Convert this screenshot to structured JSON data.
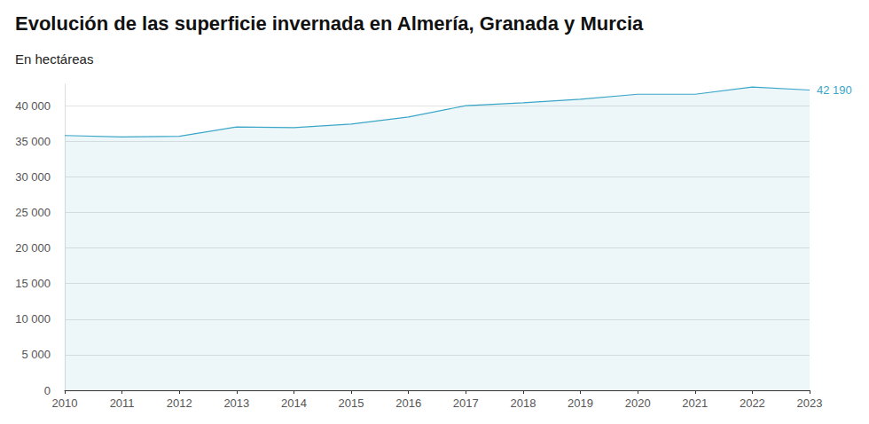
{
  "chart_data": {
    "type": "line",
    "title": "Evolución de las superficie invernada en Almería, Granada y Murcia",
    "subtitle": "En hectáreas",
    "categories": [
      "2010",
      "2011",
      "2012",
      "2013",
      "2014",
      "2015",
      "2016",
      "2017",
      "2018",
      "2019",
      "2020",
      "2021",
      "2022",
      "2023"
    ],
    "values": [
      35800,
      35600,
      35700,
      37000,
      36900,
      37400,
      38400,
      40000,
      40400,
      40900,
      41600,
      41600,
      42600,
      42190
    ],
    "value_labels": [
      null,
      null,
      null,
      null,
      null,
      null,
      null,
      null,
      null,
      null,
      null,
      null,
      null,
      "42 190"
    ],
    "data_labels": true,
    "color": "#3aa6c7",
    "ylim": [
      0,
      43000
    ],
    "yticks": [
      0,
      {
        "value": 5000,
        "label": "5 000"
      },
      {
        "value": 10000,
        "label": "10 000"
      },
      {
        "value": 15000,
        "label": "15 000"
      },
      {
        "value": 20000,
        "label": "20 000"
      },
      {
        "value": 25000,
        "label": "25 000"
      },
      {
        "value": 30000,
        "label": "30 000"
      },
      {
        "value": 35000,
        "label": "35 000"
      },
      {
        "value": 40000,
        "label": "40 000"
      }
    ],
    "grid": true
  }
}
